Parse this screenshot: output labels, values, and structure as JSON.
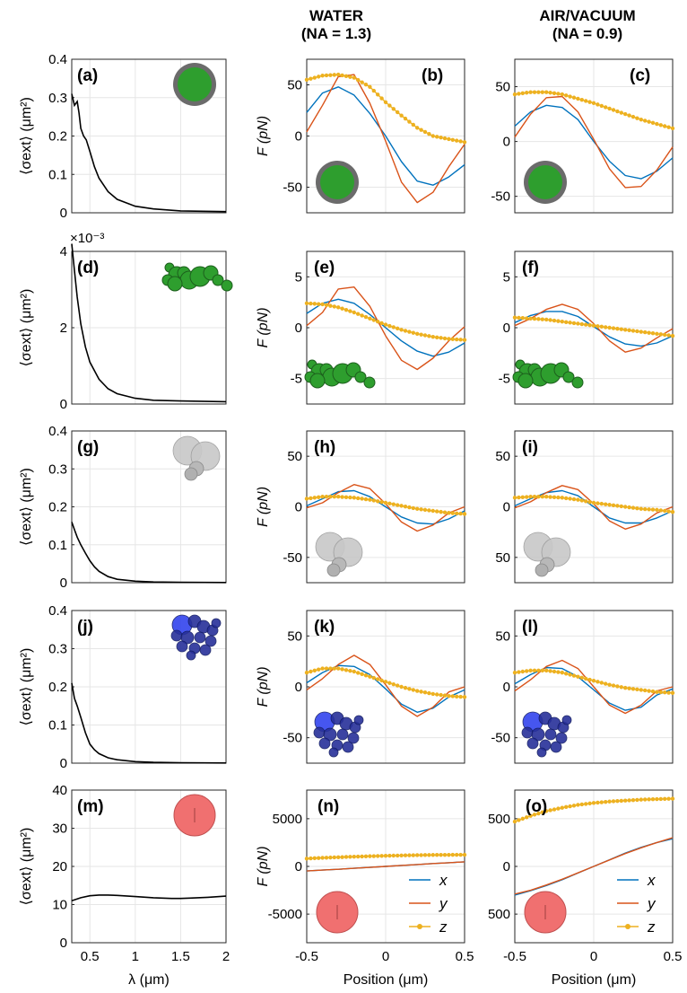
{
  "column_titles": {
    "water": [
      "WATER",
      "(NA = 1.3)"
    ],
    "air": [
      "AIR/VACUUM",
      "(NA = 0.9)"
    ]
  },
  "colors": {
    "x": "#0072BD",
    "y": "#D95319",
    "z": "#EDB120",
    "spectrum": "#000000",
    "green_particle": "#2e9e2e",
    "blue_particle": "#2233cc",
    "red_particle": "#f07070",
    "gray_particle": "#c8c8c8"
  },
  "left_axis": {
    "ylabel": "⟨σext⟩ (μm²)",
    "xlabel": "λ (μm)",
    "xticks": [
      "0.5",
      "1",
      "1.5",
      "2"
    ]
  },
  "force_axis": {
    "ylabel": "F (pN)",
    "xlabel": "Position (μm)",
    "xticks": [
      "-0.5",
      "0",
      "0.5"
    ]
  },
  "legend": [
    "x",
    "y",
    "z"
  ],
  "chart_data": [
    {
      "id": "a",
      "type": "line",
      "xlim": [
        0.3,
        2.0
      ],
      "ylim": [
        0,
        0.4
      ],
      "yticks": [
        "0",
        "0.1",
        "0.2",
        "0.3",
        "0.4"
      ],
      "particle": "green-sphere",
      "x": [
        0.3,
        0.33,
        0.36,
        0.38,
        0.4,
        0.43,
        0.46,
        0.5,
        0.55,
        0.6,
        0.7,
        0.8,
        1.0,
        1.2,
        1.5,
        2.0
      ],
      "values": [
        0.31,
        0.28,
        0.29,
        0.26,
        0.22,
        0.2,
        0.19,
        0.16,
        0.12,
        0.09,
        0.055,
        0.035,
        0.017,
        0.01,
        0.005,
        0.003
      ]
    },
    {
      "id": "b",
      "type": "line",
      "xlim": [
        -0.5,
        0.5
      ],
      "ylim": [
        -75,
        75
      ],
      "yticks": [
        "-50",
        "0",
        "50"
      ],
      "particle": "green-sphere",
      "x": [
        -0.5,
        -0.4,
        -0.3,
        -0.2,
        -0.1,
        0,
        0.1,
        0.2,
        0.3,
        0.4,
        0.5
      ],
      "series": [
        {
          "name": "x",
          "values": [
            23,
            42,
            48,
            40,
            22,
            0,
            -25,
            -44,
            -48,
            -40,
            -28
          ]
        },
        {
          "name": "y",
          "values": [
            4,
            30,
            58,
            60,
            32,
            -5,
            -45,
            -65,
            -55,
            -30,
            -8
          ]
        },
        {
          "name": "z",
          "values": [
            55,
            59,
            60,
            57,
            48,
            33,
            20,
            8,
            0,
            -3,
            -6
          ]
        }
      ]
    },
    {
      "id": "c",
      "type": "line",
      "xlim": [
        -0.5,
        0.5
      ],
      "ylim": [
        -65,
        75
      ],
      "yticks": [
        "-50",
        "0",
        "50"
      ],
      "particle": "green-sphere",
      "x": [
        -0.5,
        -0.4,
        -0.3,
        -0.2,
        -0.1,
        0,
        0.1,
        0.2,
        0.3,
        0.4,
        0.5
      ],
      "series": [
        {
          "name": "x",
          "values": [
            14,
            27,
            33,
            31,
            20,
            0,
            -18,
            -31,
            -34,
            -27,
            -15
          ]
        },
        {
          "name": "y",
          "values": [
            4,
            25,
            40,
            41,
            27,
            2,
            -25,
            -42,
            -41,
            -26,
            -5
          ]
        },
        {
          "name": "z",
          "values": [
            43,
            45,
            45,
            43,
            39,
            35,
            30,
            25,
            20,
            16,
            12
          ]
        }
      ]
    },
    {
      "id": "d",
      "type": "line",
      "xlim": [
        0.3,
        2.0
      ],
      "ylim": [
        0,
        0.004
      ],
      "yticks": [
        "0",
        "2",
        "4"
      ],
      "multiplier": "×10⁻³",
      "particle": "green-cluster",
      "x": [
        0.3,
        0.33,
        0.36,
        0.4,
        0.45,
        0.5,
        0.6,
        0.7,
        0.8,
        1.0,
        1.2,
        1.5,
        2.0
      ],
      "values": [
        0.0042,
        0.0035,
        0.0028,
        0.0021,
        0.0015,
        0.0011,
        0.00065,
        0.0004,
        0.00027,
        0.00015,
        0.0001,
        8e-05,
        6e-05
      ]
    },
    {
      "id": "e",
      "type": "line",
      "xlim": [
        -0.5,
        0.5
      ],
      "ylim": [
        -7.5,
        7.5
      ],
      "yticks": [
        "-5",
        "0",
        "5"
      ],
      "particle": "green-cluster",
      "x": [
        -0.5,
        -0.4,
        -0.3,
        -0.2,
        -0.1,
        0,
        0.1,
        0.2,
        0.3,
        0.4,
        0.5
      ],
      "series": [
        {
          "name": "x",
          "values": [
            1.4,
            2.4,
            2.8,
            2.4,
            1.3,
            0,
            -1.3,
            -2.3,
            -2.8,
            -2.4,
            -1.5
          ]
        },
        {
          "name": "y",
          "values": [
            0.2,
            1.5,
            3.8,
            4.0,
            2.1,
            -0.8,
            -3.2,
            -4.1,
            -3.0,
            -1.3,
            0.1
          ]
        },
        {
          "name": "z",
          "values": [
            2.4,
            2.3,
            2.0,
            1.5,
            0.9,
            0.3,
            -0.2,
            -0.6,
            -0.9,
            -1.1,
            -1.2
          ]
        }
      ]
    },
    {
      "id": "f",
      "type": "line",
      "xlim": [
        -0.5,
        0.5
      ],
      "ylim": [
        -7.5,
        7.5
      ],
      "yticks": [
        "-5",
        "0",
        "5"
      ],
      "particle": "green-cluster",
      "x": [
        -0.5,
        -0.4,
        -0.3,
        -0.2,
        -0.1,
        0,
        0.1,
        0.2,
        0.3,
        0.4,
        0.5
      ],
      "series": [
        {
          "name": "x",
          "values": [
            0.5,
            1.2,
            1.6,
            1.6,
            1.1,
            0.1,
            -0.9,
            -1.6,
            -1.8,
            -1.5,
            -0.8
          ]
        },
        {
          "name": "y",
          "values": [
            0.2,
            0.9,
            1.8,
            2.3,
            1.8,
            0.4,
            -1.3,
            -2.4,
            -2.0,
            -1.0,
            -0.1
          ]
        },
        {
          "name": "z",
          "values": [
            1.0,
            0.9,
            0.8,
            0.6,
            0.4,
            0.2,
            0,
            -0.2,
            -0.4,
            -0.6,
            -0.8
          ]
        }
      ]
    },
    {
      "id": "g",
      "type": "line",
      "xlim": [
        0.3,
        2.0
      ],
      "ylim": [
        0,
        0.4
      ],
      "yticks": [
        "0",
        "0.1",
        "0.2",
        "0.3",
        "0.4"
      ],
      "particle": "gray-dimer",
      "x": [
        0.3,
        0.33,
        0.36,
        0.4,
        0.45,
        0.5,
        0.55,
        0.6,
        0.7,
        0.8,
        1.0,
        1.2,
        1.5,
        2.0
      ],
      "values": [
        0.16,
        0.14,
        0.12,
        0.1,
        0.078,
        0.058,
        0.042,
        0.03,
        0.016,
        0.009,
        0.004,
        0.002,
        0.001,
        0.0005
      ]
    },
    {
      "id": "h",
      "type": "line",
      "xlim": [
        -0.5,
        0.5
      ],
      "ylim": [
        -75,
        75
      ],
      "yticks": [
        "-50",
        "0",
        "50"
      ],
      "ytick_signs": [
        "50",
        "0",
        "-50"
      ],
      "particle": "gray-dimer",
      "x": [
        -0.5,
        -0.4,
        -0.3,
        -0.2,
        -0.1,
        0,
        0.1,
        0.2,
        0.3,
        0.4,
        0.5
      ],
      "series": [
        {
          "name": "x",
          "values": [
            1,
            8,
            15,
            16,
            10,
            0,
            -10,
            -16,
            -17,
            -12,
            -4
          ]
        },
        {
          "name": "y",
          "values": [
            -1,
            4,
            14,
            22,
            18,
            3,
            -15,
            -24,
            -18,
            -6,
            0
          ]
        },
        {
          "name": "z",
          "values": [
            8,
            10,
            10,
            9,
            7,
            4,
            1,
            -2,
            -4,
            -6,
            -7
          ]
        }
      ]
    },
    {
      "id": "i",
      "type": "line",
      "xlim": [
        -0.5,
        0.5
      ],
      "ylim": [
        -75,
        75
      ],
      "yticks": [
        "50",
        "0",
        "50"
      ],
      "particle": "gray-dimer",
      "x": [
        -0.5,
        -0.4,
        -0.3,
        -0.2,
        -0.1,
        0,
        0.1,
        0.2,
        0.3,
        0.4,
        0.5
      ],
      "series": [
        {
          "name": "x",
          "values": [
            1,
            8,
            14,
            16,
            11,
            0,
            -11,
            -16,
            -16,
            -11,
            -4
          ]
        },
        {
          "name": "y",
          "values": [
            -1,
            5,
            14,
            21,
            17,
            3,
            -14,
            -22,
            -17,
            -6,
            0
          ]
        },
        {
          "name": "z",
          "values": [
            9,
            10,
            10,
            9,
            7,
            4,
            2,
            0,
            -2,
            -3,
            -5
          ]
        }
      ]
    },
    {
      "id": "j",
      "type": "line",
      "xlim": [
        0.3,
        2.0
      ],
      "ylim": [
        0,
        0.4
      ],
      "yticks": [
        "0",
        "0.1",
        "0.2",
        "0.3",
        "0.4"
      ],
      "particle": "blue-cluster",
      "x": [
        0.3,
        0.33,
        0.36,
        0.4,
        0.45,
        0.5,
        0.55,
        0.6,
        0.7,
        0.8,
        1.0,
        1.2,
        1.5,
        2.0
      ],
      "values": [
        0.21,
        0.17,
        0.15,
        0.12,
        0.08,
        0.05,
        0.035,
        0.025,
        0.014,
        0.009,
        0.004,
        0.002,
        0.001,
        0.0005
      ]
    },
    {
      "id": "k",
      "type": "line",
      "xlim": [
        -0.5,
        0.5
      ],
      "ylim": [
        -75,
        75
      ],
      "yticks": [
        "-50",
        "0",
        "50"
      ],
      "particle": "blue-cluster",
      "x": [
        -0.5,
        -0.4,
        -0.3,
        -0.2,
        -0.1,
        0,
        0.1,
        0.2,
        0.3,
        0.4,
        0.5
      ],
      "series": [
        {
          "name": "x",
          "values": [
            4,
            14,
            21,
            20,
            12,
            -2,
            -17,
            -25,
            -21,
            -10,
            -3
          ]
        },
        {
          "name": "y",
          "values": [
            -3,
            8,
            22,
            31,
            22,
            2,
            -19,
            -29,
            -20,
            -5,
            0
          ]
        },
        {
          "name": "z",
          "values": [
            14,
            18,
            18,
            15,
            10,
            5,
            0,
            -4,
            -7,
            -9,
            -10
          ]
        }
      ]
    },
    {
      "id": "l",
      "type": "line",
      "xlim": [
        -0.5,
        0.5
      ],
      "ylim": [
        -75,
        75
      ],
      "yticks": [
        "-50",
        "0",
        "50"
      ],
      "particle": "blue-cluster",
      "x": [
        -0.5,
        -0.4,
        -0.3,
        -0.2,
        -0.1,
        0,
        0.1,
        0.2,
        0.3,
        0.4,
        0.5
      ],
      "series": [
        {
          "name": "x",
          "values": [
            3,
            12,
            19,
            18,
            10,
            -3,
            -16,
            -23,
            -20,
            -8,
            -2
          ]
        },
        {
          "name": "y",
          "values": [
            -4,
            7,
            20,
            26,
            18,
            0,
            -18,
            -26,
            -18,
            -4,
            0
          ]
        },
        {
          "name": "z",
          "values": [
            14,
            16,
            16,
            14,
            10,
            6,
            2,
            -1,
            -3,
            -5,
            -6
          ]
        }
      ]
    },
    {
      "id": "m",
      "type": "line",
      "xlim": [
        0.3,
        2.0
      ],
      "ylim": [
        0,
        40
      ],
      "yticks": [
        "0",
        "10",
        "20",
        "30",
        "40"
      ],
      "particle": "red-sphere",
      "x": [
        0.3,
        0.4,
        0.5,
        0.6,
        0.7,
        0.8,
        1.0,
        1.2,
        1.4,
        1.5,
        1.6,
        1.8,
        2.0
      ],
      "values": [
        11,
        11.8,
        12.3,
        12.5,
        12.5,
        12.4,
        12.1,
        11.8,
        11.6,
        11.6,
        11.7,
        11.9,
        12.2
      ]
    },
    {
      "id": "n",
      "type": "line",
      "xlim": [
        -0.5,
        0.5
      ],
      "ylim": [
        -8000,
        8000
      ],
      "yticks": [
        "-5000",
        "0",
        "5000"
      ],
      "particle": "red-sphere",
      "legend": true,
      "x": [
        -0.5,
        -0.4,
        -0.3,
        -0.2,
        -0.1,
        0,
        0.1,
        0.2,
        0.3,
        0.4,
        0.5
      ],
      "series": [
        {
          "name": "x",
          "values": [
            -480,
            -390,
            -300,
            -200,
            -100,
            0,
            100,
            200,
            300,
            390,
            480
          ]
        },
        {
          "name": "y",
          "values": [
            -480,
            -390,
            -300,
            -200,
            -100,
            0,
            100,
            200,
            300,
            390,
            480
          ]
        },
        {
          "name": "z",
          "values": [
            820,
            900,
            960,
            1020,
            1070,
            1110,
            1150,
            1180,
            1200,
            1210,
            1220
          ]
        }
      ]
    },
    {
      "id": "o",
      "type": "line",
      "xlim": [
        -0.5,
        0.5
      ],
      "ylim": [
        -800,
        800
      ],
      "yticks": [
        "500",
        "0",
        "500"
      ],
      "particle": "red-sphere",
      "legend": true,
      "x": [
        -0.5,
        -0.4,
        -0.3,
        -0.2,
        -0.1,
        0,
        0.1,
        0.2,
        0.3,
        0.4,
        0.5
      ],
      "series": [
        {
          "name": "x",
          "values": [
            -300,
            -255,
            -200,
            -140,
            -70,
            0,
            70,
            140,
            200,
            250,
            290
          ]
        },
        {
          "name": "y",
          "values": [
            -290,
            -250,
            -195,
            -135,
            -68,
            0,
            68,
            135,
            195,
            250,
            300
          ]
        },
        {
          "name": "z",
          "values": [
            470,
            530,
            580,
            615,
            645,
            665,
            680,
            690,
            700,
            705,
            710
          ]
        }
      ]
    }
  ]
}
